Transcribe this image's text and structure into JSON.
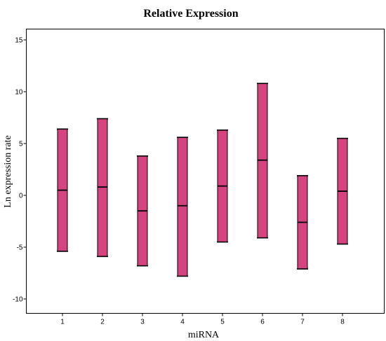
{
  "chart_data": {
    "type": "box",
    "title": "Relative Expression",
    "xlabel": "miRNA",
    "ylabel": "Ln expression rate",
    "categories": [
      "1",
      "2",
      "3",
      "4",
      "5",
      "6",
      "7",
      "8"
    ],
    "ylim": [
      -11,
      16.5
    ],
    "yticks": [
      15,
      10,
      5,
      0,
      -5,
      -10
    ],
    "ytick_labels": [
      "15",
      "10",
      "5",
      "0",
      "-5",
      "-10"
    ],
    "series": [
      {
        "low": -5.4,
        "mid": 0.5,
        "high": 6.4
      },
      {
        "low": -5.9,
        "mid": 0.8,
        "high": 7.4
      },
      {
        "low": -6.8,
        "mid": -1.5,
        "high": 3.8
      },
      {
        "low": -7.8,
        "mid": -1.0,
        "high": 5.6
      },
      {
        "low": -4.5,
        "mid": 0.9,
        "high": 6.3
      },
      {
        "low": -4.1,
        "mid": 3.4,
        "high": 10.8
      },
      {
        "low": -7.1,
        "mid": -2.6,
        "high": 1.9
      },
      {
        "low": -4.7,
        "mid": 0.4,
        "high": 5.5
      }
    ],
    "bar_color": "#d64480",
    "grid": false,
    "legend": "none"
  }
}
